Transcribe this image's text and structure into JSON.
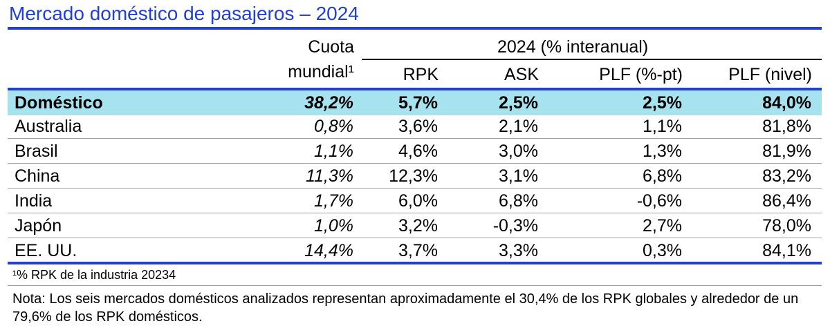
{
  "title": "Mercado doméstico de pasajeros – 2024",
  "header": {
    "share_line1": "Cuota",
    "share_line2": "mundial¹",
    "group_label": "2024 (% interanual)",
    "columns": [
      "RPK",
      "ASK",
      "PLF (%-pt)",
      "PLF (nivel)"
    ]
  },
  "rows": [
    {
      "name": "Doméstico",
      "share": "38,2%",
      "rpk": "5,7%",
      "ask": "2,5%",
      "plf_pt": "2,5%",
      "plf_level": "84,0%"
    },
    {
      "name": "Australia",
      "share": "0,8%",
      "rpk": "3,6%",
      "ask": "2,1%",
      "plf_pt": "1,1%",
      "plf_level": "81,8%"
    },
    {
      "name": "Brasil",
      "share": "1,1%",
      "rpk": "4,6%",
      "ask": "3,0%",
      "plf_pt": "1,3%",
      "plf_level": "81,9%"
    },
    {
      "name": "China",
      "share": "11,3%",
      "rpk": "12,3%",
      "ask": "3,1%",
      "plf_pt": "6,8%",
      "plf_level": "83,2%"
    },
    {
      "name": "India",
      "share": "1,7%",
      "rpk": "6,0%",
      "ask": "6,8%",
      "plf_pt": "-0,6%",
      "plf_level": "86,4%"
    },
    {
      "name": "Japón",
      "share": "1,0%",
      "rpk": "3,2%",
      "ask": "-0,3%",
      "plf_pt": "2,7%",
      "plf_level": "78,0%"
    },
    {
      "name": "EE. UU.",
      "share": "14,4%",
      "rpk": "3,7%",
      "ask": "3,3%",
      "plf_pt": "0,3%",
      "plf_level": "84,1%"
    }
  ],
  "footnote": "¹% RPK de la industria 20234",
  "note": "Nota: Los seis mercados domésticos analizados representan aproximadamente el 30,4% de los RPK globales y alrededor de un 79,6% de los RPK domésticos.",
  "colors": {
    "accent": "#1f3fd6",
    "highlight": "#a7e3ef"
  }
}
